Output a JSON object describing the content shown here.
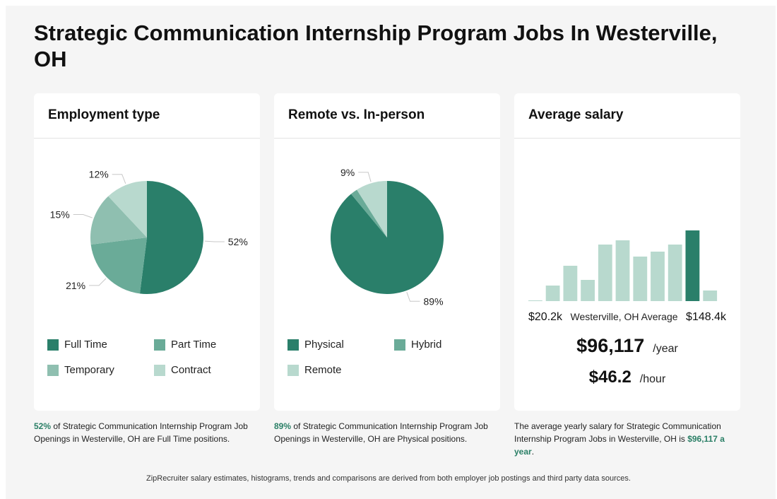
{
  "page": {
    "title": "Strategic Communication Internship Program Jobs In Westerville, OH",
    "footer": "ZipRecruiter salary estimates, histograms, trends and comparisons are derived from both employer job postings and third party data sources."
  },
  "employment": {
    "title": "Employment type",
    "legend": [
      "Full Time",
      "Part Time",
      "Temporary",
      "Contract"
    ],
    "caption_pct": "52%",
    "caption_rest": " of Strategic Communication Internship Program Job Openings in Westerville, OH are Full Time positions."
  },
  "remote": {
    "title": "Remote vs. In-person",
    "legend": [
      "Physical",
      "Hybrid",
      "Remote"
    ],
    "caption_pct": "89%",
    "caption_rest": " of Strategic Communication Internship Program Job Openings in Westerville, OH are Physical positions."
  },
  "salary": {
    "title": "Average salary",
    "min": "$20.2k",
    "mid_label": "Westerville, OH Average",
    "max": "$148.4k",
    "yearly": "$96,117",
    "yearly_unit": "/year",
    "hourly": "$46.2",
    "hourly_unit": "/hour",
    "caption_pre": "The average yearly salary for Strategic Communication Internship Program Jobs in Westerville, OH is ",
    "caption_value": "$96,117 a year",
    "caption_post": "."
  },
  "colors": {
    "dark": "#2a7f6a",
    "mid": "#6aab98",
    "light": "#8fbfb0",
    "pale": "#b8d9ce"
  },
  "chart_data": [
    {
      "type": "pie",
      "title": "Employment type",
      "labels": [
        "Full Time",
        "Part Time",
        "Temporary",
        "Contract"
      ],
      "values": [
        52,
        21,
        15,
        12
      ],
      "value_labels": [
        "52%",
        "21%",
        "15%",
        "12%"
      ],
      "colors": [
        "#2a7f6a",
        "#6aab98",
        "#8fbfb0",
        "#b8d9ce"
      ]
    },
    {
      "type": "pie",
      "title": "Remote vs. In-person",
      "labels": [
        "Physical",
        "Hybrid",
        "Remote"
      ],
      "values": [
        89,
        2,
        9
      ],
      "value_labels": [
        "89%",
        "",
        "9%"
      ],
      "colors": [
        "#2a7f6a",
        "#6aab98",
        "#b8d9ce"
      ]
    },
    {
      "type": "bar",
      "title": "Average salary",
      "xlabel_left": "$20.2k",
      "xlabel_right": "$148.4k",
      "values": [
        1,
        22,
        50,
        30,
        80,
        86,
        63,
        70,
        80,
        100,
        15
      ],
      "highlight_index": 9,
      "ylim": [
        0,
        100
      ]
    }
  ]
}
